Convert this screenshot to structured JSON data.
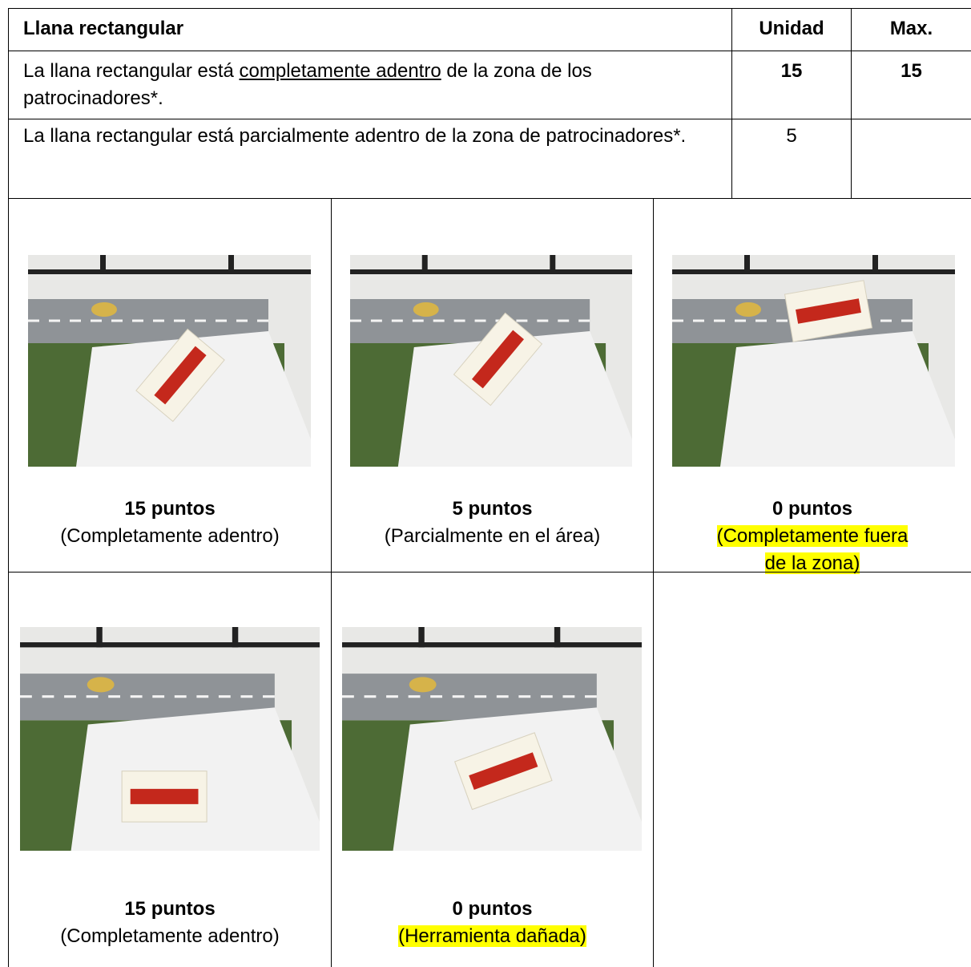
{
  "header": {
    "title": "Llana rectangular",
    "unit": "Unidad",
    "max": "Max."
  },
  "rows": [
    {
      "text_parts": [
        "La llana rectangular está ",
        "completamente adentro",
        " de la zona de los patrocinadores*."
      ],
      "underline_part": 1,
      "unit": 15,
      "max": 15,
      "bold": true
    },
    {
      "text": "La llana rectangular está parcialmente adentro de la zona de patrocinadores*.",
      "unit": 5
    }
  ],
  "figures": [
    {
      "points": "15 puntos",
      "description": "(Completamente adentro)"
    },
    {
      "points": "5 puntos",
      "description": "(Parcialmente en el área)"
    },
    {
      "points": "0 puntos",
      "description": "(Completamente fuera de la zona)",
      "highlight": true
    },
    {
      "points": "15 puntos",
      "description": "(Completamente adentro)"
    },
    {
      "points": "0 puntos",
      "description": "(Herramienta dañada)",
      "highlight": true
    }
  ]
}
